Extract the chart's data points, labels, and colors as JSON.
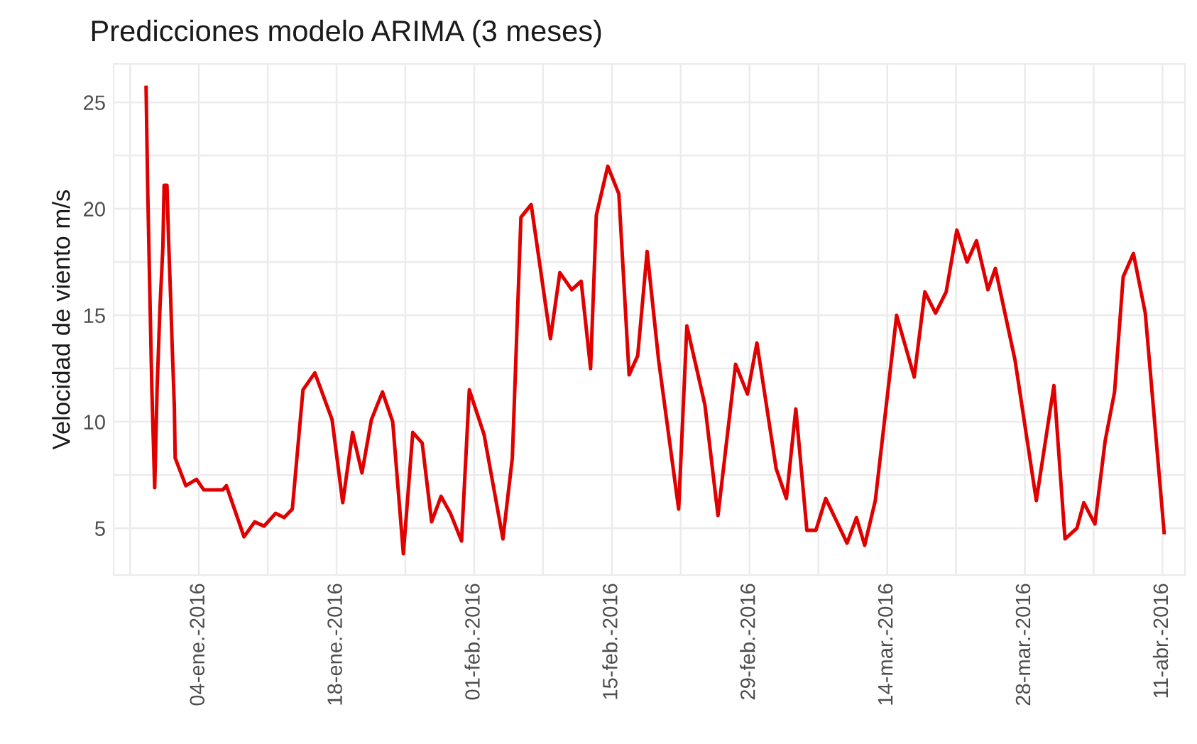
{
  "chart_data": {
    "type": "line",
    "title": "Predicciones modelo ARIMA (3 meses)",
    "ylabel": "Velocidad de viento m/s",
    "x": [
      "2015-12-29T15:00",
      "2015-12-29T19:00",
      "2015-12-30T00:00",
      "2015-12-30T05:00",
      "2015-12-30T12:00",
      "2015-12-30T18:00",
      "2015-12-31T01:00",
      "2015-12-31T08:00",
      "2015-12-31T11:00",
      "2015-12-31T18:00",
      "2015-12-31T22:00",
      "2016-01-01T03:00",
      "2016-01-01T07:00",
      "2016-01-01T12:00",
      "2016-01-01T14:00",
      "2016-01-02T16:00",
      "2016-01-03T18:00",
      "2016-01-04T12:00",
      "2016-01-06T10:00",
      "2016-01-06T19:00",
      "2016-01-08T14:00",
      "2016-01-09T16:00",
      "2016-01-10T15:00",
      "2016-01-11T19:00",
      "2016-01-12T16:00",
      "2016-01-13T12:00",
      "2016-01-14T14:00",
      "2016-01-15T19:00",
      "2016-01-17T13:00",
      "2016-01-18T15:00",
      "2016-01-19T15:00",
      "2016-01-20T14:00",
      "2016-01-21T13:00",
      "2016-01-22T16:00",
      "2016-01-23T17:00",
      "2016-01-24T19:00",
      "2016-01-25T18:00",
      "2016-01-26T17:00",
      "2016-01-27T16:00",
      "2016-01-28T15:00",
      "2016-01-29T14:00",
      "2016-01-30T17:00",
      "2016-01-31T12:00",
      "2016-02-02T00:00",
      "2016-02-03T22:00",
      "2016-02-04T21:00",
      "2016-02-05T18:00",
      "2016-02-06T19:00",
      "2016-02-08T18:00",
      "2016-02-09T17:00",
      "2016-02-10T22:00",
      "2016-02-11T21:00",
      "2016-02-12T20:00",
      "2016-02-13T10:00",
      "2016-02-14T14:00",
      "2016-02-15T17:00",
      "2016-02-16T18:00",
      "2016-02-17T15:00",
      "2016-02-18T14:00",
      "2016-02-19T18:00",
      "2016-02-21T19:00",
      "2016-02-22T15:00",
      "2016-02-24T11:00",
      "2016-02-25T19:00",
      "2016-02-27T14:00",
      "2016-02-28T19:00",
      "2016-02-29T18:00",
      "2016-03-02T17:00",
      "2016-03-03T18:00",
      "2016-03-04T17:00",
      "2016-03-05T20:00",
      "2016-03-06T18:00",
      "2016-03-07T18:00",
      "2016-03-09T22:00",
      "2016-03-10T21:00",
      "2016-03-11T17:00",
      "2016-03-12T19:00",
      "2016-03-14T23:00",
      "2016-03-16T18:00",
      "2016-03-17T20:00",
      "2016-03-18T22:00",
      "2016-03-20T00:00",
      "2016-03-21T02:00",
      "2016-03-22T03:00",
      "2016-03-23T02:00",
      "2016-03-24T06:00",
      "2016-03-25T00:00",
      "2016-03-27T00:00",
      "2016-03-29T04:00",
      "2016-03-30T23:00",
      "2016-04-01T02:00",
      "2016-04-02T07:00",
      "2016-04-03T00:00",
      "2016-04-04T03:00",
      "2016-04-05T04:00",
      "2016-04-06T03:00",
      "2016-04-07T00:00",
      "2016-04-08T01:00",
      "2016-04-09T06:00",
      "2016-04-11T04:00"
    ],
    "series": [
      {
        "color": "#e00000",
        "values": [
          25.7,
          20.9,
          16.2,
          11.6,
          6.9,
          11.6,
          15.4,
          18.2,
          21.1,
          21.1,
          18.5,
          15.8,
          13.4,
          10.7,
          8.3,
          7.0,
          7.3,
          6.8,
          6.8,
          7.0,
          4.6,
          5.3,
          5.1,
          5.7,
          5.5,
          5.9,
          11.5,
          12.3,
          10.1,
          6.2,
          9.5,
          7.6,
          10.1,
          11.4,
          10.0,
          3.8,
          9.5,
          9.0,
          5.3,
          6.5,
          5.7,
          4.4,
          11.5,
          9.4,
          4.5,
          8.3,
          19.6,
          20.2,
          13.9,
          17.0,
          16.2,
          16.6,
          12.5,
          19.7,
          22.0,
          20.7,
          12.2,
          13.1,
          18.0,
          12.9,
          5.9,
          14.5,
          10.8,
          5.6,
          12.7,
          11.3,
          13.7,
          7.8,
          6.4,
          10.6,
          4.9,
          4.9,
          6.4,
          4.3,
          5.5,
          4.2,
          6.3,
          15.0,
          12.1,
          16.1,
          15.1,
          16.1,
          19.0,
          17.5,
          18.5,
          16.2,
          17.2,
          12.9,
          6.3,
          11.7,
          4.5,
          5.0,
          6.2,
          5.2,
          9.1,
          11.4,
          16.8,
          17.9,
          15.1,
          4.8
        ]
      }
    ],
    "xlim": [
      "2015-12-26T08:00",
      "2016-04-13T07:00"
    ],
    "xticks": [
      {
        "value": "2015-12-28",
        "label": null
      },
      {
        "value": "2016-01-04",
        "label": "04-ene.-2016"
      },
      {
        "value": "2016-01-11",
        "label": null
      },
      {
        "value": "2016-01-18",
        "label": "18-ene.-2016"
      },
      {
        "value": "2016-01-25",
        "label": null
      },
      {
        "value": "2016-02-01",
        "label": "01-feb.-2016"
      },
      {
        "value": "2016-02-08",
        "label": null
      },
      {
        "value": "2016-02-15",
        "label": "15-feb.-2016"
      },
      {
        "value": "2016-02-22",
        "label": null
      },
      {
        "value": "2016-02-29",
        "label": "29-feb.-2016"
      },
      {
        "value": "2016-03-07",
        "label": null
      },
      {
        "value": "2016-03-14",
        "label": "14-mar.-2016"
      },
      {
        "value": "2016-03-21",
        "label": null
      },
      {
        "value": "2016-03-28",
        "label": "28-mar.-2016"
      },
      {
        "value": "2016-04-04",
        "label": null
      },
      {
        "value": "2016-04-11",
        "label": "11-abr.-2016"
      }
    ],
    "ylim": [
      2.8,
      26.8
    ],
    "yticks": [
      5,
      {
        "value": 7.5,
        "label": null
      },
      10,
      {
        "value": 12.5,
        "label": null
      },
      15,
      {
        "value": 17.5,
        "label": null
      },
      20,
      {
        "value": 22.5,
        "label": null
      },
      25
    ],
    "grid": true,
    "marker": "none",
    "line_style": "solid"
  }
}
